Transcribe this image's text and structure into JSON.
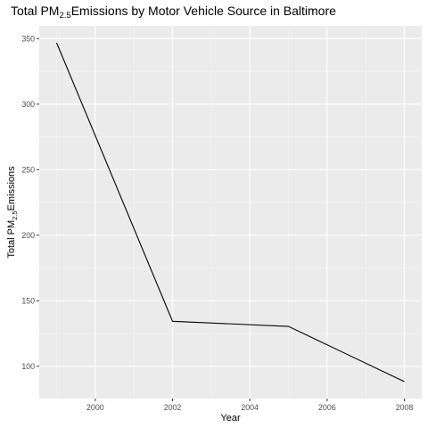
{
  "chart_data": {
    "type": "line",
    "title": {
      "prefix": "Total PM",
      "subscript": "2.5",
      "suffix": "Emissions by Motor Vehicle Source in Baltimore"
    },
    "xlabel": "Year",
    "ylabel": {
      "prefix": "Total PM",
      "subscript": "2.5",
      "suffix": "Emissions"
    },
    "x": [
      1999,
      2002,
      2005,
      2008
    ],
    "y": [
      346.82,
      134.31,
      130.43,
      88.28
    ],
    "xlim": [
      1998.55,
      2008.45
    ],
    "ylim": [
      75.35,
      359.75
    ],
    "x_ticks": [
      2000,
      2002,
      2004,
      2006,
      2008
    ],
    "x_minor_ticks": [
      1999,
      2001,
      2003,
      2005,
      2007
    ],
    "y_ticks": [
      100,
      150,
      200,
      250,
      300,
      350
    ],
    "y_minor_ticks": [
      125,
      175,
      225,
      275,
      325
    ],
    "x_tick_labels": [
      "2000",
      "2002",
      "2004",
      "2006",
      "2008"
    ],
    "y_tick_labels": [
      "100",
      "150",
      "200",
      "250",
      "300",
      "350"
    ],
    "grid": true,
    "legend": "none",
    "colors": {
      "panel_background": "#ebebeb",
      "grid_major": "#ffffff",
      "grid_minor": "#f5f5f5",
      "line": "#000000",
      "tick": "#333333"
    }
  }
}
